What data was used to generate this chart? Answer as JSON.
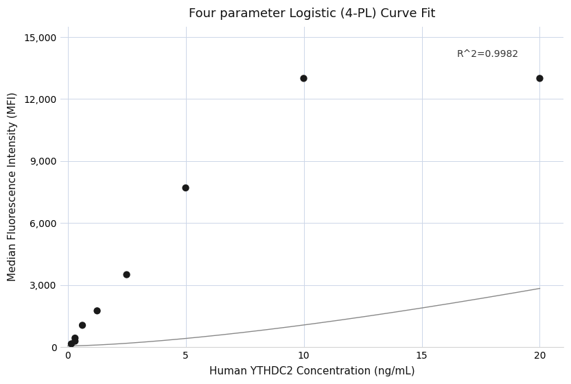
{
  "title": "Four parameter Logistic (4-PL) Curve Fit",
  "xlabel": "Human YTHDC2 Concentration (ng/mL)",
  "ylabel": "Median Fluorescence Intensity (MFI)",
  "scatter_x": [
    0.156,
    0.313,
    0.313,
    0.625,
    1.25,
    2.5,
    5.0,
    10.0,
    20.0
  ],
  "scatter_y": [
    150,
    280,
    430,
    1050,
    1750,
    3500,
    7700,
    13000,
    13000
  ],
  "xlim": [
    -0.3,
    21
  ],
  "ylim": [
    0,
    15500
  ],
  "xticks": [
    0,
    5,
    10,
    15,
    20
  ],
  "yticks": [
    0,
    3000,
    6000,
    9000,
    12000,
    15000
  ],
  "r_squared": "R^2=0.9982",
  "r2_x": 16.5,
  "r2_y": 14400,
  "dot_color": "#1a1a1a",
  "dot_size": 55,
  "line_color": "#888888",
  "grid_color": "#ccd6e8",
  "background_color": "#ffffff",
  "title_fontsize": 13,
  "label_fontsize": 11,
  "tick_fontsize": 10,
  "curve_x_start": 0.0,
  "curve_x_end": 20.0,
  "pl4_A": 50,
  "pl4_B": 1.5,
  "pl4_C": 100,
  "pl4_D": 55000
}
